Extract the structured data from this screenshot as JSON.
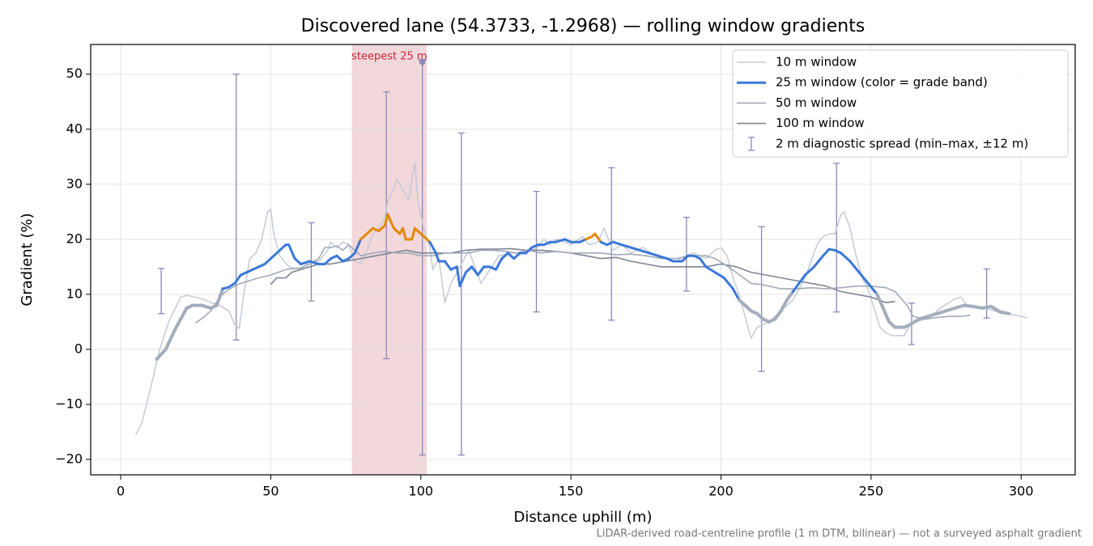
{
  "chart_data": {
    "type": "line",
    "title": "Discovered lane (54.3733, -1.2968) — rolling window gradients",
    "xlabel": "Distance uphill (m)",
    "ylabel": "Gradient (%)",
    "footnote": "LiDAR-derived road-centreline profile (1 m DTM, bilinear) — not a surveyed asphalt gradient",
    "xlim": [
      -10,
      318
    ],
    "ylim": [
      -22.8,
      55.4
    ],
    "xticks": [
      0,
      50,
      100,
      150,
      200,
      250,
      300
    ],
    "yticks": [
      {
        "value": -20,
        "label": "−20"
      },
      {
        "value": -10,
        "label": "−10"
      },
      0,
      10,
      20,
      30,
      40,
      50
    ],
    "grid": true,
    "legend": "upper right",
    "highlight": {
      "label": "steepest 25 m",
      "x": [
        77,
        102
      ],
      "color": "#f2d7db",
      "label_color": "#c8283c",
      "marker": {
        "x": 100.5,
        "y": 52,
        "color": "#8a87b8"
      }
    },
    "series": [
      {
        "name": "10 m window",
        "color": "#c5cad3",
        "width": 1.5,
        "x": [
          5,
          7,
          10,
          13,
          16,
          20,
          22,
          25,
          28,
          30,
          33,
          36,
          38,
          39.5,
          41,
          43,
          45,
          47,
          49,
          50,
          51,
          53,
          56,
          60,
          63,
          66,
          69,
          70,
          72,
          74,
          76,
          78,
          80,
          82,
          84,
          86,
          88,
          89,
          91,
          92,
          94,
          96,
          97,
          98,
          99,
          101,
          103,
          104,
          106,
          108,
          110,
          112,
          114,
          116,
          118,
          120,
          123,
          126,
          130,
          134,
          137,
          139,
          141,
          143,
          145,
          148,
          150,
          154,
          156,
          159,
          161,
          164,
          167,
          170,
          174,
          178,
          182,
          185,
          188,
          191,
          195,
          198,
          200,
          202,
          204,
          206,
          208,
          210,
          212,
          214,
          216,
          218,
          220,
          222,
          224,
          226,
          228,
          230,
          232,
          234,
          236,
          238,
          240,
          241,
          243,
          245,
          247,
          249,
          251,
          253,
          255,
          257,
          259,
          261,
          263,
          265,
          268,
          270,
          273,
          276,
          278,
          280,
          282,
          285,
          288,
          291,
          294,
          297,
          300,
          302
        ],
        "values": [
          -15.5,
          -13.5,
          -7,
          0,
          5,
          9.5,
          9.8,
          9.5,
          9,
          8.5,
          8,
          7,
          4.5,
          3.8,
          10,
          16.5,
          17.5,
          20,
          25,
          25.5,
          21,
          17,
          15,
          14.5,
          16,
          16,
          18,
          19.5,
          18.5,
          19.5,
          19,
          16,
          15.5,
          18,
          21,
          22,
          24,
          27,
          29,
          31,
          29,
          27,
          31,
          34,
          27,
          22,
          18.5,
          14.5,
          16.5,
          8.5,
          12,
          14,
          16,
          18,
          15,
          12,
          14.5,
          17,
          17.5,
          17.5,
          18,
          18.5,
          20,
          19,
          20,
          19.5,
          19,
          20.5,
          19,
          19.5,
          22,
          18,
          19,
          17.5,
          18.5,
          17,
          16.5,
          16,
          17,
          17.5,
          16.5,
          18,
          18.5,
          17,
          13,
          10,
          6,
          2,
          4,
          4.5,
          5,
          6,
          7,
          8,
          9,
          11,
          13,
          16,
          19,
          20.5,
          21,
          21,
          24.5,
          25,
          22,
          17,
          13,
          11,
          7.5,
          4,
          3,
          2.5,
          2.5,
          2.5,
          4.5,
          5,
          5.5,
          6,
          7.5,
          8.5,
          9.2,
          9.5,
          8,
          7.5,
          7.5,
          7,
          6.5,
          6.3,
          6,
          5.7
        ]
      },
      {
        "name": "25 m window (color = grade band)",
        "color": "#3a78d8",
        "width": 3,
        "band_thresholds": [
          10,
          20
        ],
        "band_colors": [
          "#a3adbb",
          "#3a78d8",
          "#e08a00"
        ],
        "x": [
          12,
          15,
          18,
          20,
          22,
          24,
          27,
          30,
          32,
          34,
          36,
          38,
          40,
          42,
          44,
          46,
          48,
          50,
          53,
          55,
          56,
          58,
          60,
          63,
          66,
          68,
          70,
          72,
          74,
          76,
          78,
          80,
          82,
          84,
          86,
          88,
          89,
          91,
          93,
          94,
          95,
          97,
          98,
          100,
          101,
          103,
          105,
          106,
          108,
          110,
          112,
          113,
          115,
          117,
          119,
          121,
          123,
          125,
          127,
          129,
          131,
          133,
          135,
          137,
          139,
          141,
          143,
          145,
          148,
          150,
          153,
          155,
          157,
          158,
          160,
          162,
          164,
          167,
          170,
          173,
          176,
          179,
          182,
          184,
          187,
          189,
          191,
          193,
          195,
          198,
          201,
          204,
          206,
          208,
          210,
          212,
          214,
          216,
          218,
          220,
          222,
          224,
          226,
          228,
          231,
          234,
          236,
          238,
          240,
          243,
          246,
          249,
          252,
          254,
          256,
          258,
          261,
          263,
          266,
          269,
          272,
          275,
          278,
          281,
          284,
          287,
          290,
          293,
          296
        ],
        "values": [
          -1.8,
          0,
          3.5,
          5.5,
          7.5,
          8,
          8,
          7.5,
          8,
          11,
          11.3,
          12,
          13.5,
          14,
          14.5,
          15,
          15.5,
          16.5,
          18,
          19,
          19,
          16.5,
          15.5,
          16,
          15.5,
          15.5,
          16.5,
          17,
          16,
          16.5,
          17.5,
          20,
          21,
          22,
          21.5,
          22.5,
          24.5,
          22,
          21,
          22,
          20,
          20,
          22,
          21,
          20.5,
          19.5,
          17.5,
          16,
          16,
          14.5,
          15,
          11.5,
          14,
          15,
          13.5,
          15,
          15,
          14.5,
          16.5,
          17.5,
          16.5,
          17.5,
          17.5,
          18.5,
          19,
          19,
          19.5,
          19.5,
          20,
          19.5,
          19.5,
          20,
          20.5,
          21,
          19.5,
          19,
          19.5,
          19,
          18.5,
          18,
          17.5,
          17,
          16.5,
          16,
          16,
          17,
          17,
          16.5,
          15,
          14,
          13,
          11,
          9,
          8,
          7,
          6.5,
          5.5,
          5,
          5.5,
          7,
          9,
          10.5,
          12,
          13.5,
          15,
          17,
          18.2,
          18,
          17.5,
          16,
          14,
          12,
          10,
          7.5,
          5,
          4,
          4,
          4.5,
          5.5,
          6,
          6.5,
          7,
          7.5,
          8,
          7.8,
          7.5,
          7.8,
          6.8,
          6.5
        ]
      },
      {
        "name": "50 m window",
        "color": "#a0aab8",
        "width": 1.6,
        "x": [
          25,
          28,
          30,
          33,
          35,
          38,
          40,
          43,
          46,
          50,
          55,
          60,
          63,
          66,
          68,
          70,
          72,
          74,
          76,
          78,
          80,
          84,
          88,
          92,
          96,
          100,
          104,
          108,
          112,
          116,
          120,
          124,
          128,
          132,
          136,
          140,
          145,
          150,
          155,
          160,
          165,
          170,
          175,
          180,
          185,
          190,
          195,
          198,
          201,
          205,
          210,
          213,
          216,
          220,
          225,
          230,
          235,
          240,
          245,
          250,
          255,
          258,
          262,
          264,
          268,
          272,
          276,
          280,
          283
        ],
        "values": [
          4.8,
          6,
          7,
          9.5,
          10.5,
          11.5,
          12,
          12.5,
          13,
          13.5,
          14.5,
          14.8,
          15.5,
          16.5,
          18.5,
          18.5,
          18.8,
          18,
          19,
          18,
          17,
          17.5,
          17.8,
          17.5,
          17.5,
          17,
          17,
          17.5,
          17.5,
          17.5,
          18,
          18,
          17.8,
          17.5,
          18,
          17.5,
          17.8,
          17.5,
          17.5,
          17.5,
          17.2,
          17.3,
          17,
          16.5,
          16.5,
          17,
          17,
          16.5,
          15.5,
          14,
          12,
          11.8,
          11.5,
          11,
          11,
          11.2,
          11,
          11.2,
          11.5,
          11.5,
          11.2,
          10.5,
          8,
          6,
          5.5,
          5.8,
          6,
          6,
          6.2
        ]
      },
      {
        "name": "100 m window",
        "color": "#7d8493",
        "width": 1.6,
        "x": [
          50,
          52,
          55,
          57,
          60,
          63,
          66,
          70,
          75,
          80,
          85,
          90,
          95,
          100,
          105,
          110,
          115,
          120,
          125,
          130,
          135,
          140,
          145,
          150,
          155,
          160,
          165,
          170,
          175,
          180,
          185,
          190,
          195,
          200,
          205,
          210,
          215,
          220,
          225,
          230,
          235,
          240,
          245,
          250,
          255,
          258
        ],
        "values": [
          11.8,
          13,
          13,
          14,
          14.5,
          15,
          15.5,
          15.5,
          16,
          16.5,
          17,
          17.5,
          18,
          17.5,
          17.5,
          17.5,
          18,
          18.2,
          18.2,
          18.3,
          18,
          18,
          17.8,
          17.5,
          17,
          16.5,
          16.7,
          16,
          15.5,
          15,
          15,
          15,
          15,
          15.5,
          15,
          14,
          13.5,
          13,
          12.5,
          12,
          11.5,
          10.5,
          10,
          9.5,
          8.5,
          8.7
        ]
      }
    ],
    "error_bars": {
      "name": "2 m diagnostic spread (min–max, ±12 m)",
      "color": "#8a87b8",
      "x": [
        13.5,
        38.5,
        63.5,
        88.5,
        100.5,
        113.5,
        138.5,
        163.5,
        188.5,
        213.5,
        238.5,
        263.5,
        288.5
      ],
      "low": [
        6.5,
        1.7,
        8.8,
        -1.7,
        -19.2,
        -19.2,
        6.8,
        5.3,
        10.6,
        -4,
        6.8,
        0.9,
        5.7
      ],
      "high": [
        14.7,
        50,
        23,
        46.8,
        52,
        39.3,
        28.7,
        33,
        24,
        22.3,
        33.8,
        8.4,
        14.6
      ]
    }
  }
}
